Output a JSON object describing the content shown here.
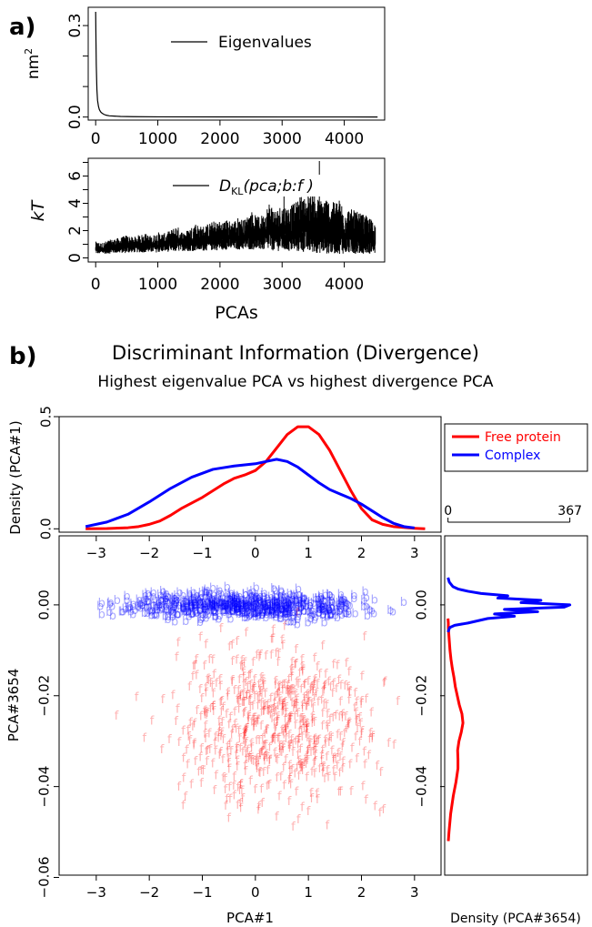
{
  "panel_labels": {
    "a": "a)",
    "b": "b)"
  },
  "title": "Discriminant Information (Divergence)",
  "subtitle": "Highest eigenvalue PCA vs highest divergence PCA",
  "colors": {
    "free": "#ff0000",
    "complex": "#0000ff",
    "axis": "#000000"
  },
  "chart_data": [
    {
      "id": "eigenvalues",
      "type": "line",
      "ylabel": "nm",
      "ylabel_sup": "2",
      "legend": [
        "Eigenvalues"
      ],
      "legend_position": "top-right",
      "xlim": [
        -120,
        4650
      ],
      "ylim": [
        -0.01,
        0.36
      ],
      "xticks": [
        0,
        1000,
        2000,
        3000,
        4000
      ],
      "yticks": [
        0.0,
        0.3
      ],
      "ytick_labels": [
        "0.0",
        "0.3"
      ],
      "extra_yticks": [
        0.1,
        0.2
      ],
      "series": [
        {
          "x": [
            0,
            5,
            10,
            20,
            30,
            45,
            60,
            80,
            100,
            130,
            170,
            220,
            300,
            400,
            600,
            1000,
            2000,
            3000,
            4000,
            4536
          ],
          "values": [
            0.345,
            0.25,
            0.17,
            0.09,
            0.055,
            0.035,
            0.024,
            0.017,
            0.013,
            0.009,
            0.006,
            0.004,
            0.003,
            0.002,
            0.0012,
            0.0007,
            0.0004,
            0.0003,
            0.0002,
            0.0001
          ]
        }
      ]
    },
    {
      "id": "divergence",
      "type": "line",
      "ylabel": "kT",
      "xlabel": "PCAs",
      "legend": [
        "D",
        "KL",
        "(pca;b:f )"
      ],
      "legend_position": "top-right",
      "xlim": [
        -120,
        4650
      ],
      "ylim": [
        -0.3,
        7.3
      ],
      "xticks": [
        0,
        1000,
        2000,
        3000,
        4000
      ],
      "yticks": [
        0,
        2,
        4,
        6
      ],
      "extra_yticks": [
        1,
        3,
        5,
        7
      ],
      "series": [
        {
          "x": [
            0,
            100,
            200,
            300,
            400,
            500,
            600,
            700,
            800,
            900,
            1000,
            1100,
            1200,
            1300,
            1400,
            1500,
            1600,
            1700,
            1800,
            1900,
            2000,
            2100,
            2200,
            2300,
            2400,
            2500,
            2600,
            2700,
            2800,
            2900,
            3000,
            3100,
            3200,
            3300,
            3400,
            3500,
            3600,
            3700,
            3800,
            3900,
            4000,
            4100,
            4200,
            4300,
            4400,
            4500
          ],
          "lower": [
            0.3,
            0.3,
            0.3,
            0.35,
            0.35,
            0.35,
            0.4,
            0.4,
            0.4,
            0.4,
            0.4,
            0.45,
            0.45,
            0.45,
            0.5,
            0.5,
            0.5,
            0.5,
            0.55,
            0.55,
            0.55,
            0.6,
            0.6,
            0.6,
            0.6,
            0.6,
            0.6,
            0.55,
            0.55,
            0.5,
            0.5,
            0.45,
            0.45,
            0.4,
            0.4,
            0.35,
            0.35,
            0.3,
            0.3,
            0.3,
            0.3,
            0.3,
            0.3,
            0.3,
            0.3,
            0.3
          ],
          "upper": [
            1.2,
            1.1,
            1.3,
            1.4,
            1.5,
            1.7,
            1.5,
            1.7,
            1.8,
            1.6,
            1.9,
            1.8,
            2.0,
            2.4,
            1.9,
            2.1,
            2.6,
            2.3,
            2.5,
            2.7,
            2.7,
            2.8,
            2.7,
            3.0,
            2.8,
            3.5,
            3.0,
            3.2,
            4.2,
            3.5,
            4.0,
            3.8,
            4.0,
            4.6,
            4.4,
            5.0,
            4.2,
            4.6,
            4.0,
            4.4,
            3.9,
            3.6,
            3.4,
            3.2,
            3.0,
            2.6
          ],
          "peaks": [
            {
              "x": 3600,
              "y": 7.1
            },
            {
              "x": 3420,
              "y": 6.1
            },
            {
              "x": 3030,
              "y": 5.6
            }
          ]
        }
      ]
    },
    {
      "id": "density_pca1",
      "type": "line",
      "ylabel": "Density (PCA#1)",
      "xlim": [
        -3.7,
        3.5
      ],
      "ylim": [
        -0.015,
        0.5
      ],
      "xticks": [
        -3,
        -2,
        -1,
        0,
        1,
        2,
        3
      ],
      "yticks": [
        0.0,
        0.5
      ],
      "ytick_labels": [
        "0.0",
        "0.5"
      ],
      "series": [
        {
          "name": "Free protein",
          "x": [
            -3.2,
            -2.8,
            -2.4,
            -2.2,
            -2.0,
            -1.8,
            -1.6,
            -1.4,
            -1.2,
            -1.0,
            -0.8,
            -0.6,
            -0.4,
            -0.2,
            0.0,
            0.2,
            0.4,
            0.6,
            0.8,
            1.0,
            1.2,
            1.4,
            1.6,
            1.8,
            2.0,
            2.2,
            2.4,
            2.6,
            3.0,
            3.2
          ],
          "values": [
            0.0,
            0.001,
            0.005,
            0.01,
            0.02,
            0.035,
            0.06,
            0.09,
            0.115,
            0.14,
            0.17,
            0.2,
            0.225,
            0.24,
            0.26,
            0.3,
            0.36,
            0.42,
            0.455,
            0.455,
            0.42,
            0.35,
            0.26,
            0.17,
            0.09,
            0.04,
            0.02,
            0.01,
            0.002,
            0.0
          ]
        },
        {
          "name": "Complex",
          "x": [
            -3.2,
            -2.8,
            -2.4,
            -2.0,
            -1.6,
            -1.2,
            -0.8,
            -0.4,
            0.0,
            0.2,
            0.4,
            0.6,
            0.8,
            1.0,
            1.2,
            1.4,
            1.6,
            1.8,
            2.0,
            2.2,
            2.4,
            2.6,
            2.8,
            3.0
          ],
          "values": [
            0.01,
            0.03,
            0.065,
            0.12,
            0.18,
            0.23,
            0.265,
            0.28,
            0.29,
            0.3,
            0.31,
            0.3,
            0.275,
            0.24,
            0.205,
            0.175,
            0.155,
            0.135,
            0.11,
            0.08,
            0.05,
            0.025,
            0.01,
            0.004
          ]
        }
      ]
    },
    {
      "id": "density_pca3654",
      "type": "line",
      "xlabel": "Density (PCA#3654)",
      "xlim": [
        -10,
        420
      ],
      "xticks": [
        0,
        367
      ],
      "ylim": [
        -0.0595,
        0.0152
      ],
      "series": [
        {
          "name": "Free protein",
          "y": [
            -0.052,
            -0.05,
            -0.046,
            -0.042,
            -0.039,
            -0.036,
            -0.034,
            -0.032,
            -0.03,
            -0.028,
            -0.026,
            -0.024,
            -0.022,
            -0.02,
            -0.018,
            -0.016,
            -0.014,
            -0.012,
            -0.01,
            -0.008,
            -0.006,
            -0.005,
            -0.004,
            -0.003
          ],
          "density": [
            1,
            3,
            8,
            16,
            24,
            30,
            30,
            29,
            33,
            40,
            45,
            42,
            34,
            28,
            22,
            18,
            13,
            9,
            6,
            4,
            2,
            1,
            1,
            0
          ]
        },
        {
          "name": "Complex",
          "y": [
            -0.006,
            -0.005,
            -0.0045,
            -0.004,
            -0.003,
            -0.0025,
            -0.002,
            -0.0015,
            -0.001,
            -0.0005,
            0.0,
            0.0005,
            0.001,
            0.0015,
            0.002,
            0.0025,
            0.003,
            0.0035,
            0.004,
            0.005,
            0.006
          ],
          "density": [
            0,
            5,
            20,
            60,
            120,
            200,
            140,
            270,
            170,
            350,
            367,
            220,
            280,
            150,
            180,
            100,
            60,
            30,
            15,
            4,
            0
          ]
        }
      ]
    },
    {
      "id": "scatter",
      "type": "scatter",
      "xlabel": "PCA#1",
      "ylabel": "PCA#3654",
      "xlim": [
        -3.7,
        3.5
      ],
      "ylim": [
        -0.0595,
        0.0152
      ],
      "xticks": [
        -3,
        -2,
        -1,
        0,
        1,
        2,
        3
      ],
      "yticks": [
        0.0,
        -0.02,
        -0.04,
        -0.06
      ],
      "ytick_labels": [
        "0.00",
        "−0.02",
        "−0.04",
        "−0.06"
      ],
      "legend": [
        "Free protein",
        "Complex"
      ],
      "legend_position": "top-right (in right marginal panel)",
      "series": [
        {
          "name": "Complex",
          "marker": "b",
          "x_range": [
            -3.2,
            2.8
          ],
          "y_mean": 0.0,
          "y_spread": 0.0015
        },
        {
          "name": "Free protein",
          "marker": "f",
          "x_range": [
            -2.8,
            2.8
          ],
          "y_mean": -0.026,
          "y_spread": 0.009
        }
      ]
    }
  ]
}
